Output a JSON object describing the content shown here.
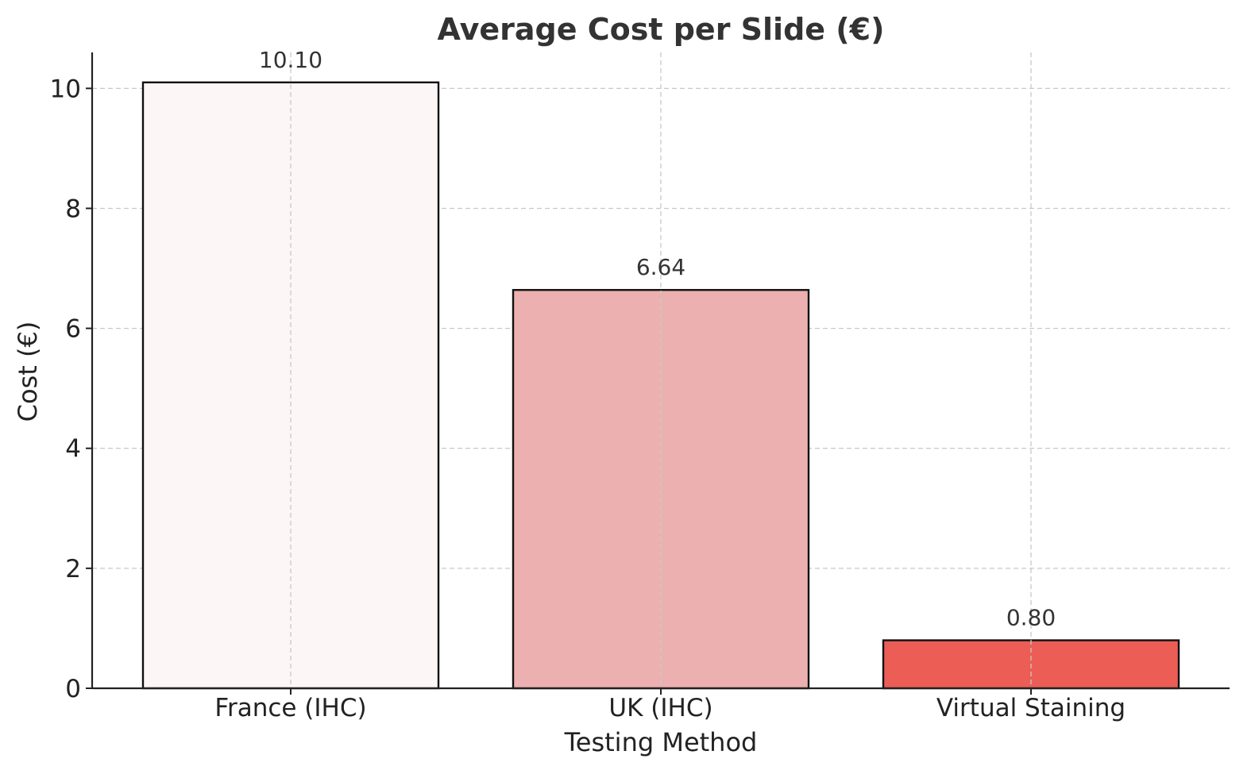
{
  "chart_data": {
    "type": "bar",
    "title": "Average Cost per Slide (€)",
    "xlabel": "Testing Method",
    "ylabel": "Cost (€)",
    "categories": [
      "France (IHC)",
      "UK (IHC)",
      "Virtual Staining"
    ],
    "values": [
      10.1,
      6.64,
      0.8
    ],
    "value_labels": [
      "10.10",
      "6.64",
      "0.80"
    ],
    "colors": [
      "#fcf6f7",
      "#ebb0af",
      "#eb5d55"
    ],
    "ylim": [
      0,
      10.6
    ],
    "yticks": [
      0,
      2,
      4,
      6,
      8,
      10
    ],
    "grid": true,
    "legend": "none"
  }
}
